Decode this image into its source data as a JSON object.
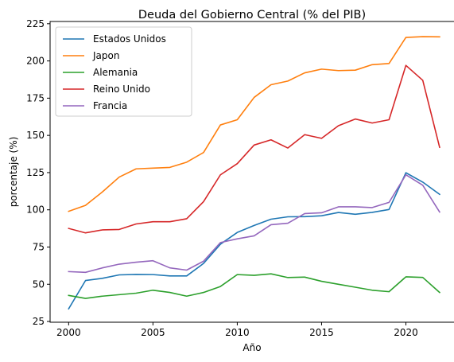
{
  "chart_data": {
    "type": "line",
    "title": "Deuda del Gobierno Central (% del PIB)",
    "xlabel": "Año",
    "ylabel": "porcentaje (%)",
    "xlim": [
      1998.9,
      2022.9
    ],
    "ylim": [
      24.5,
      226.5
    ],
    "xticks": [
      2000,
      2005,
      2010,
      2015,
      2020
    ],
    "yticks": [
      25,
      50,
      75,
      100,
      125,
      150,
      175,
      200,
      225
    ],
    "grid": false,
    "legend_position": "top-left",
    "x": [
      2000,
      2001,
      2002,
      2003,
      2004,
      2005,
      2006,
      2007,
      2008,
      2009,
      2010,
      2011,
      2012,
      2013,
      2014,
      2015,
      2016,
      2017,
      2018,
      2019,
      2020,
      2021,
      2022
    ],
    "series": [
      {
        "name": "Estados Unidos",
        "color": "#1f77b4",
        "values": [
          33.5,
          52.5,
          54.0,
          56.3,
          56.6,
          56.5,
          55.6,
          55.6,
          64.0,
          76.9,
          84.8,
          89.5,
          93.7,
          95.3,
          95.4,
          96.0,
          98.2,
          97.0,
          98.3,
          100.2,
          124.9,
          118.6,
          110.4
        ]
      },
      {
        "name": "Japon",
        "color": "#ff7f0e",
        "values": [
          99.0,
          103.0,
          112.0,
          122.0,
          127.5,
          128.0,
          128.5,
          132.0,
          138.5,
          157.0,
          160.5,
          175.5,
          184.0,
          186.5,
          192.0,
          194.5,
          193.5,
          193.8,
          197.5,
          198.3,
          215.8,
          216.3,
          216.2
        ]
      },
      {
        "name": "Alemania",
        "color": "#2ca02c",
        "values": [
          42.5,
          40.5,
          42.0,
          43.0,
          44.0,
          46.0,
          44.5,
          42.0,
          44.5,
          48.5,
          56.5,
          56.0,
          57.0,
          54.5,
          54.8,
          52.0,
          50.0,
          48.0,
          46.0,
          45.0,
          55.0,
          54.6,
          44.5
        ]
      },
      {
        "name": "Reino Unido",
        "color": "#d62728",
        "values": [
          87.5,
          84.5,
          86.5,
          86.8,
          90.5,
          92.0,
          92.0,
          94.0,
          105.5,
          123.5,
          131.0,
          143.5,
          147.0,
          141.5,
          150.5,
          148.0,
          156.5,
          161.0,
          158.3,
          160.5,
          197.0,
          187.0,
          142.0
        ]
      },
      {
        "name": "Francia",
        "color": "#9467bd",
        "values": [
          58.5,
          58.0,
          61.0,
          63.5,
          64.8,
          65.8,
          61.0,
          59.5,
          65.5,
          78.0,
          80.5,
          82.5,
          90.0,
          91.0,
          97.5,
          98.0,
          102.0,
          102.0,
          101.5,
          105.0,
          123.5,
          116.5,
          98.5
        ]
      }
    ]
  }
}
